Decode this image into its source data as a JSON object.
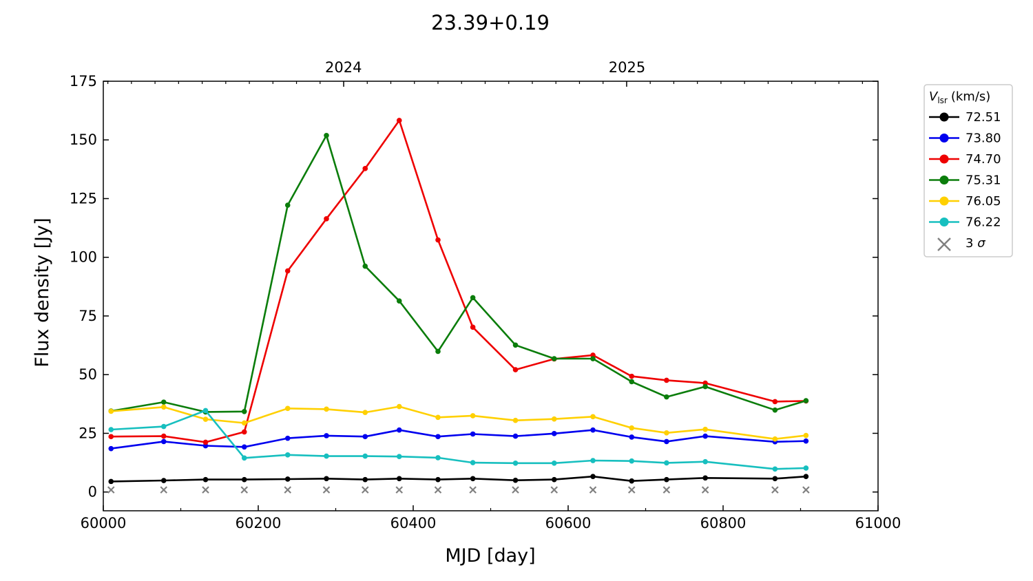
{
  "chart_data": {
    "type": "line",
    "title": "23.39+0.19",
    "xlabel": "MJD [day]",
    "ylabel": "Flux density [Jy]",
    "xlim": [
      60000,
      61000
    ],
    "ylim": [
      -8,
      175
    ],
    "xticks": [
      60000,
      60200,
      60400,
      60600,
      60800,
      61000
    ],
    "xtick_labels": [
      "60000",
      "60200",
      "60400",
      "60600",
      "60800",
      "61000"
    ],
    "yticks": [
      0,
      25,
      50,
      75,
      100,
      125,
      150,
      175
    ],
    "ytick_labels": [
      "0",
      "25",
      "50",
      "75",
      "100",
      "125",
      "150",
      "175"
    ],
    "top_axis": {
      "ticks": [
        60310,
        60676
      ],
      "labels": [
        "2024",
        "2025"
      ]
    },
    "grid": false,
    "legend": {
      "placement": "outside-right",
      "title_symbol": "V",
      "title_subscript": "lsr",
      "title_unit": "(km/s)",
      "sigma_label": "3",
      "sigma_symbol": "σ"
    },
    "x": [
      60010,
      60078,
      60132,
      60182,
      60238,
      60288,
      60338,
      60382,
      60432,
      60477,
      60532,
      60582,
      60632,
      60682,
      60727,
      60777,
      60867,
      60907
    ],
    "series": [
      {
        "name": "72.51",
        "color": "#000000",
        "values": [
          4.5,
          4.9,
          5.3,
          5.3,
          5.5,
          5.7,
          5.3,
          5.7,
          5.3,
          5.7,
          5.0,
          5.3,
          6.6,
          4.7,
          5.3,
          6.0,
          5.7,
          6.6
        ]
      },
      {
        "name": "73.80",
        "color": "#0000ee",
        "values": [
          18.5,
          21.5,
          19.7,
          19.2,
          22.9,
          24.0,
          23.6,
          26.4,
          23.6,
          24.7,
          23.8,
          24.9,
          26.4,
          23.4,
          21.5,
          23.8,
          21.4,
          21.7
        ]
      },
      {
        "name": "74.70",
        "color": "#ee0000",
        "values": [
          23.6,
          23.8,
          21.2,
          25.6,
          94.2,
          116.4,
          137.8,
          158.3,
          107.4,
          70.2,
          52.1,
          56.7,
          58.3,
          49.3,
          47.6,
          46.4,
          38.5,
          38.8
        ]
      },
      {
        "name": "75.31",
        "color": "#0b7d0b",
        "values": [
          34.5,
          38.3,
          34.1,
          34.3,
          122.2,
          151.9,
          96.2,
          81.4,
          59.9,
          82.8,
          62.6,
          56.8,
          56.8,
          47.0,
          40.5,
          44.9,
          34.9,
          38.9
        ]
      },
      {
        "name": "76.05",
        "color": "#ffd000",
        "values": [
          34.4,
          36.2,
          31.0,
          29.4,
          35.6,
          35.3,
          33.9,
          36.4,
          31.8,
          32.5,
          30.5,
          31.1,
          32.1,
          27.3,
          25.2,
          26.7,
          22.6,
          24.1
        ]
      },
      {
        "name": "76.22",
        "color": "#17bfbf",
        "values": [
          26.6,
          27.9,
          34.7,
          14.5,
          15.8,
          15.3,
          15.3,
          15.1,
          14.6,
          12.5,
          12.3,
          12.3,
          13.4,
          13.2,
          12.4,
          12.9,
          9.8,
          10.2
        ]
      }
    ],
    "sigma3": {
      "name": "3 σ",
      "color": "#808080",
      "values": [
        0.9,
        0.9,
        0.9,
        0.9,
        0.9,
        0.9,
        0.9,
        0.9,
        0.9,
        0.9,
        0.9,
        0.9,
        0.9,
        0.9,
        0.9,
        0.9,
        0.9,
        0.9
      ]
    }
  }
}
